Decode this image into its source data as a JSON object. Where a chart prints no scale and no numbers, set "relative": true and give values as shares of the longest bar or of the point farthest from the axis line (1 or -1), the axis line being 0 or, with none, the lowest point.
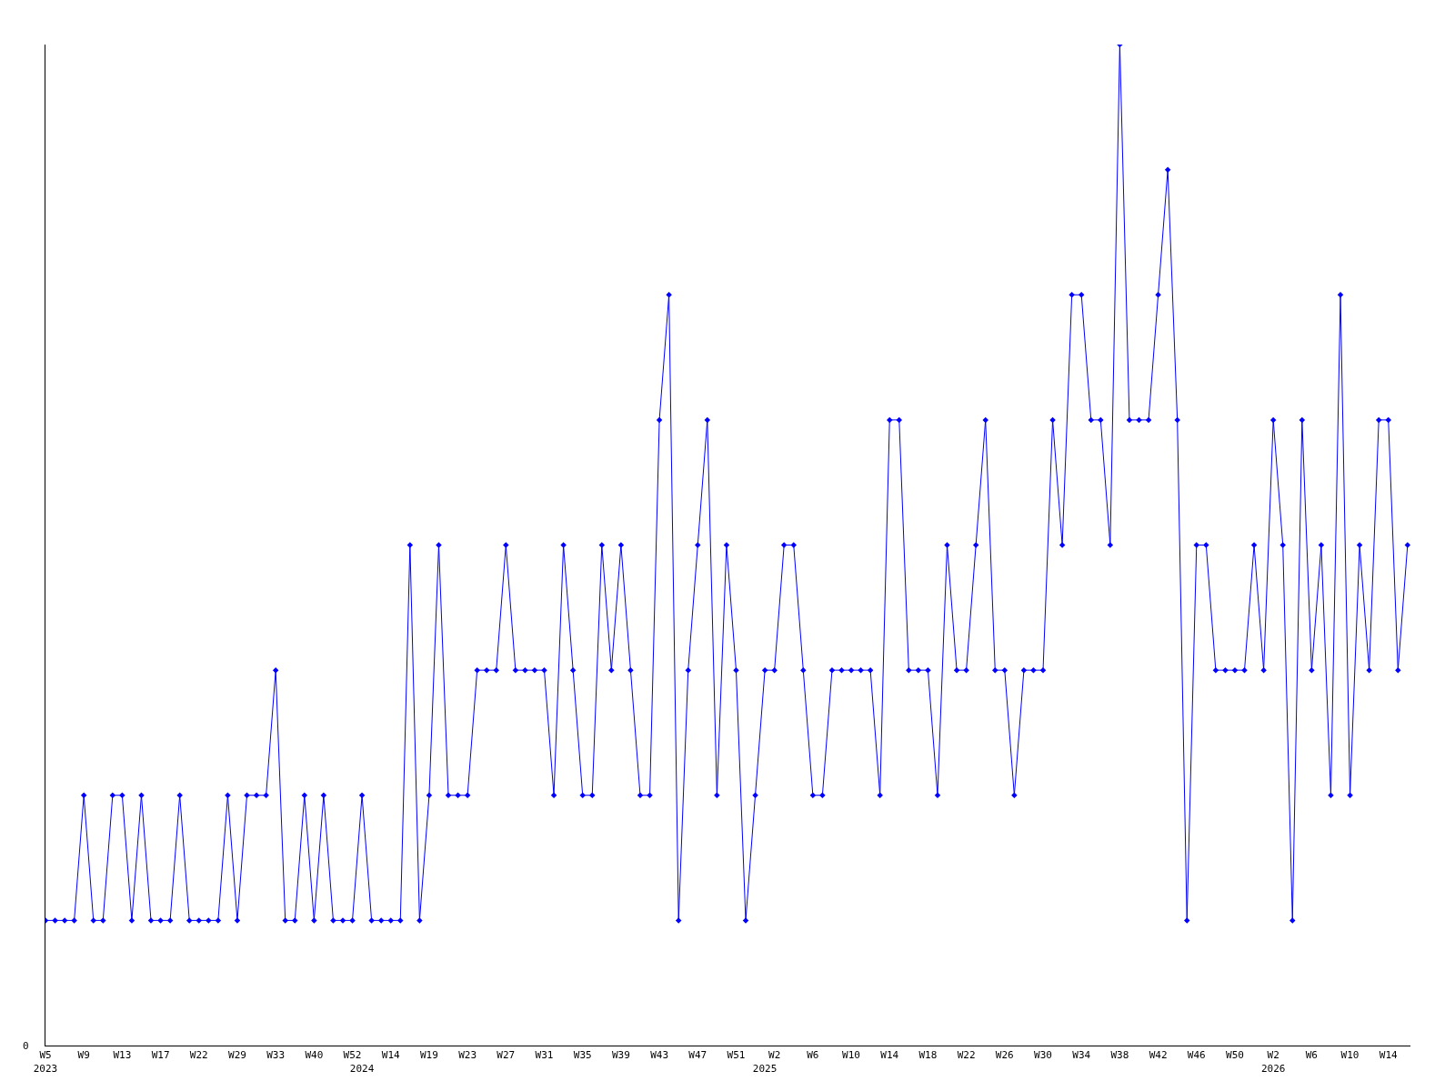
{
  "chart_data": {
    "type": "line",
    "relative": true,
    "marker": "diamond",
    "line_style": "solid",
    "grid": false,
    "categories": [
      "W5\n2023",
      null,
      null,
      null,
      "W9",
      null,
      null,
      null,
      "W13",
      null,
      null,
      null,
      "W17",
      null,
      null,
      null,
      "W22",
      null,
      null,
      null,
      "W29",
      null,
      null,
      null,
      "W33",
      null,
      null,
      null,
      "W40",
      null,
      null,
      null,
      "W52",
      "\n2024",
      null,
      null,
      "W14",
      null,
      null,
      null,
      "W19",
      null,
      null,
      null,
      "W23",
      null,
      null,
      null,
      "W27",
      null,
      null,
      null,
      "W31",
      null,
      null,
      null,
      "W35",
      null,
      null,
      null,
      "W39",
      null,
      null,
      null,
      "W43",
      null,
      null,
      null,
      "W47",
      null,
      null,
      null,
      "W51",
      null,
      null,
      "\n2025",
      "W2",
      null,
      null,
      null,
      "W6",
      null,
      null,
      null,
      "W10",
      null,
      null,
      null,
      "W14",
      null,
      null,
      null,
      "W18",
      null,
      null,
      null,
      "W22",
      null,
      null,
      null,
      "W26",
      null,
      null,
      null,
      "W30",
      null,
      null,
      null,
      "W34",
      null,
      null,
      null,
      "W38",
      null,
      null,
      null,
      "W42",
      null,
      null,
      null,
      "W46",
      null,
      null,
      null,
      "W50",
      null,
      null,
      null,
      "W2\n2026",
      null,
      null,
      null,
      "W6",
      null,
      null,
      null,
      "W10",
      null,
      null,
      null,
      "W14",
      null,
      null
    ],
    "series": [
      {
        "color": "#0000ff",
        "values": [
          0.125,
          0.125,
          0.125,
          0.125,
          0.25,
          0.125,
          0.125,
          0.25,
          0.25,
          0.125,
          0.25,
          0.125,
          0.125,
          0.125,
          0.25,
          0.125,
          0.125,
          0.125,
          0.125,
          0.25,
          0.125,
          0.25,
          0.25,
          0.25,
          0.375,
          0.125,
          0.125,
          0.25,
          0.125,
          0.25,
          0.125,
          0.125,
          0.125,
          0.25,
          0.125,
          0.125,
          0.125,
          0.125,
          0.5,
          0.125,
          0.25,
          0.5,
          0.25,
          0.25,
          0.25,
          0.375,
          0.375,
          0.375,
          0.5,
          0.375,
          0.375,
          0.375,
          0.375,
          0.25,
          0.5,
          0.375,
          0.25,
          0.25,
          0.5,
          0.375,
          0.5,
          0.375,
          0.25,
          0.25,
          0.625,
          0.75,
          0.125,
          0.375,
          0.5,
          0.625,
          0.25,
          0.5,
          0.375,
          0.125,
          0.25,
          0.375,
          0.375,
          0.5,
          0.5,
          0.375,
          0.25,
          0.25,
          0.375,
          0.375,
          0.375,
          0.375,
          0.375,
          0.25,
          0.625,
          0.625,
          0.375,
          0.375,
          0.375,
          0.25,
          0.5,
          0.375,
          0.375,
          0.5,
          0.625,
          0.375,
          0.375,
          0.25,
          0.375,
          0.375,
          0.375,
          0.625,
          0.5,
          0.75,
          0.75,
          0.625,
          0.625,
          0.5,
          1,
          0.625,
          0.625,
          0.625,
          0.75,
          0.875,
          0.625,
          0.125,
          0.5,
          0.5,
          0.375,
          0.375,
          0.375,
          0.375,
          0.5,
          0.375,
          0.625,
          0.5,
          0.125,
          0.625,
          0.375,
          0.5,
          0.25,
          0.75,
          0.25,
          0.5,
          0.375,
          0.625,
          0.625,
          0.375,
          0.5
        ]
      }
    ],
    "annotations": [
      "0"
    ]
  }
}
